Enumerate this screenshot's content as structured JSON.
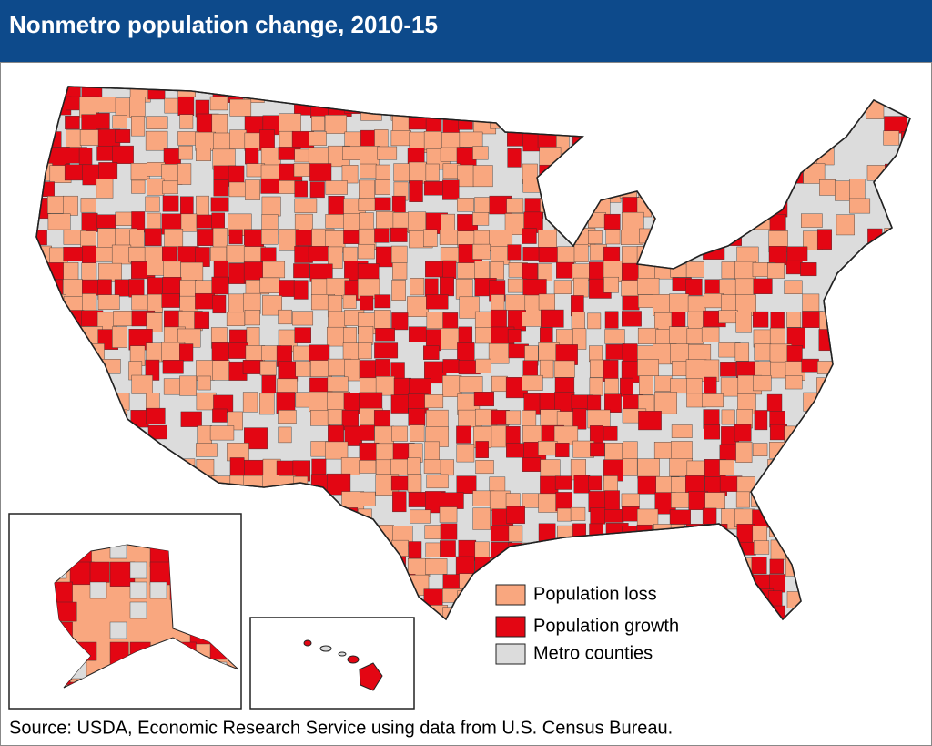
{
  "header": {
    "title": "Nonmetro population change, 2010-15"
  },
  "legend": {
    "items": [
      {
        "label": "Population loss",
        "color": "#f9a77f"
      },
      {
        "label": "Population growth",
        "color": "#e30613"
      },
      {
        "label": "Metro counties",
        "color": "#dcdcdc"
      }
    ]
  },
  "source": "Source: USDA, Economic Research Service using data from U.S. Census Bureau."
}
